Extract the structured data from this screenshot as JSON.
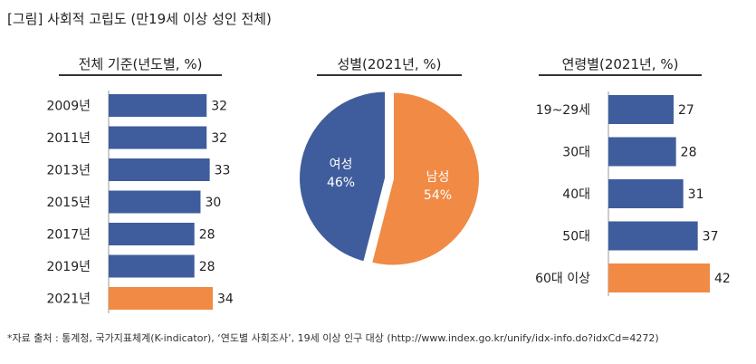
{
  "figure": {
    "title": "[그림] 사회적 고립도 (만19세 이상 성인 전체)",
    "source_note": "*자료 출처 : 통계청, 국가지표체계(K-indicator), ‘연도별 사회조사’, 19세 이상 인구 대상 (http://www.index.go.kr/unify/idx-info.do?idxCd=4272)"
  },
  "colors": {
    "blue": "#3f5d9c",
    "orange": "#f08a45"
  },
  "chart_data": [
    {
      "type": "bar",
      "orientation": "horizontal",
      "title": "전체 기준(년도별, %)",
      "categories": [
        "2009년",
        "2011년",
        "2013년",
        "2015년",
        "2017년",
        "2019년",
        "2021년"
      ],
      "values": [
        32,
        32,
        33,
        30,
        28,
        28,
        34
      ],
      "highlight": "2021년"
    },
    {
      "type": "pie",
      "title": "성별(2021년, %)",
      "slices": [
        {
          "label": "남성",
          "value": 54,
          "text": "54%"
        },
        {
          "label": "여성",
          "value": 46,
          "text": "46%"
        }
      ]
    },
    {
      "type": "bar",
      "orientation": "horizontal",
      "title": "연령별(2021년, %)",
      "categories": [
        "19~29세",
        "30대",
        "40대",
        "50대",
        "60대 이상"
      ],
      "values": [
        27,
        28,
        31,
        37,
        42
      ],
      "highlight": "60대 이상"
    }
  ]
}
